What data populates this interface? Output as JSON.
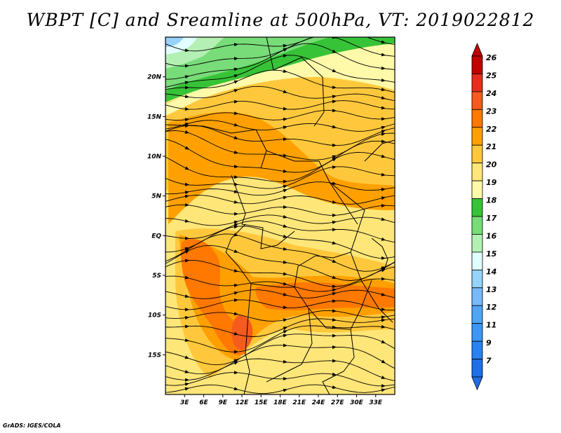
{
  "title": "WBPT [C] and Sreamline at 500hPa, VT: 2019022812",
  "credit": "GrADS: IGES/COLA",
  "map": {
    "lon_range": [
      0,
      36
    ],
    "lat_range": [
      -20,
      25
    ],
    "lat_ticks": [
      {
        "value": 20,
        "label": "20N"
      },
      {
        "value": 15,
        "label": "15N"
      },
      {
        "value": 10,
        "label": "10N"
      },
      {
        "value": 5,
        "label": "5N"
      },
      {
        "value": 0,
        "label": "EQ"
      },
      {
        "value": -5,
        "label": "5S"
      },
      {
        "value": -10,
        "label": "10S"
      },
      {
        "value": -15,
        "label": "15S"
      }
    ],
    "lon_ticks": [
      {
        "value": 3,
        "label": "3E"
      },
      {
        "value": 6,
        "label": "6E"
      },
      {
        "value": 9,
        "label": "9E"
      },
      {
        "value": 12,
        "label": "12E"
      },
      {
        "value": 15,
        "label": "15E"
      },
      {
        "value": 18,
        "label": "18E"
      },
      {
        "value": 21,
        "label": "21E"
      },
      {
        "value": 24,
        "label": "24E"
      },
      {
        "value": 27,
        "label": "27E"
      },
      {
        "value": 30,
        "label": "30E"
      },
      {
        "value": 33,
        "label": "33E"
      }
    ]
  },
  "colorbar": {
    "labels": [
      "7",
      "9",
      "11",
      "12",
      "13",
      "14",
      "15",
      "16",
      "17",
      "18",
      "19",
      "20",
      "21",
      "22",
      "23",
      "24",
      "25",
      "26"
    ],
    "colors": [
      "#1e6ee6",
      "#2882f0",
      "#3c96f5",
      "#50a5f5",
      "#78b9fa",
      "#96d2fa",
      "#e1ffff",
      "#b4f0b4",
      "#78dc78",
      "#37c337",
      "#fffaaa",
      "#ffe678",
      "#ffc83c",
      "#ffa000",
      "#ff7800",
      "#f55a1e",
      "#e62d1e",
      "#c00000"
    ],
    "lower_arrow_color": "#1e6ee6",
    "upper_arrow_color": "#c00000"
  },
  "field_colors": {
    "c16": "#b4f0b4",
    "c17": "#78dc78",
    "c18": "#37c337",
    "c19": "#fffaaa",
    "c20": "#ffe678",
    "c21": "#ffc83c",
    "c22": "#ffa000",
    "c23": "#ff7800",
    "c24": "#f55a1e",
    "c15": "#e1ffff",
    "c14": "#96d2fa"
  }
}
